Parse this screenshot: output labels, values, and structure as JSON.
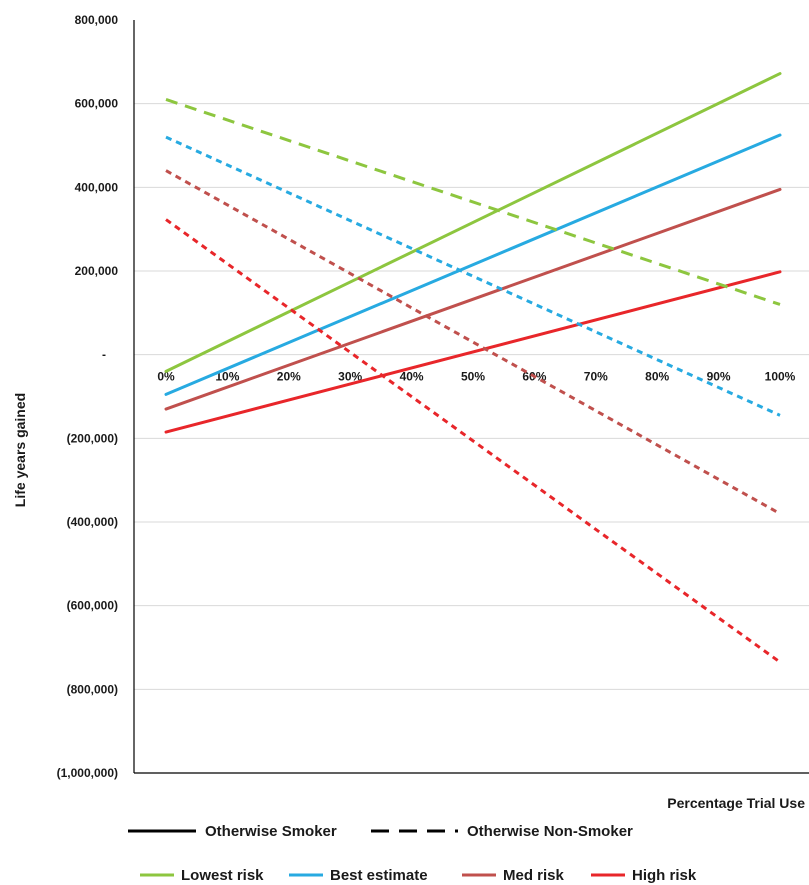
{
  "chart_data": {
    "type": "line",
    "xlabel": "Percentage Trial Use",
    "ylabel": "Life years gained",
    "x": [
      0,
      100
    ],
    "x_tick_labels": [
      "0%",
      "10%",
      "20%",
      "30%",
      "40%",
      "50%",
      "60%",
      "70%",
      "80%",
      "90%",
      "100%"
    ],
    "y_tick_labels": [
      "800,000",
      "600,000",
      "400,000",
      "200,000",
      "-",
      "(200,000)",
      "(400,000)",
      "(600,000)",
      "(800,000)",
      "(1,000,000)"
    ],
    "ylim": [
      -1000000,
      800000
    ],
    "grid": "horizontal",
    "legend_placement": "bottom",
    "style_legend": [
      {
        "label": "Otherwise Smoker",
        "dash": "solid"
      },
      {
        "label": "Otherwise Non-Smoker",
        "dash": "dashed"
      }
    ],
    "color_legend": [
      {
        "label": "Lowest risk",
        "color": "#8dc63f"
      },
      {
        "label": "Best estimate",
        "color": "#27aae1"
      },
      {
        "label": "Med risk",
        "color": "#c0504d"
      },
      {
        "label": "High risk",
        "color": "#e8262a"
      }
    ],
    "series": [
      {
        "risk": "Lowest risk",
        "scenario": "Otherwise Smoker",
        "values": [
          -40000,
          672000
        ]
      },
      {
        "risk": "Best estimate",
        "scenario": "Otherwise Smoker",
        "values": [
          -95000,
          525000
        ]
      },
      {
        "risk": "Med risk",
        "scenario": "Otherwise Smoker",
        "values": [
          -130000,
          395000
        ]
      },
      {
        "risk": "High risk",
        "scenario": "Otherwise Smoker",
        "values": [
          -185000,
          198000
        ]
      },
      {
        "risk": "Lowest risk",
        "scenario": "Otherwise Non-Smoker",
        "values": [
          610000,
          120000
        ]
      },
      {
        "risk": "Best estimate",
        "scenario": "Otherwise Non-Smoker",
        "values": [
          520000,
          -145000
        ]
      },
      {
        "risk": "Med risk",
        "scenario": "Otherwise Non-Smoker",
        "values": [
          440000,
          -380000
        ]
      },
      {
        "risk": "High risk",
        "scenario": "Otherwise Non-Smoker",
        "values": [
          323000,
          -735000
        ]
      }
    ]
  }
}
